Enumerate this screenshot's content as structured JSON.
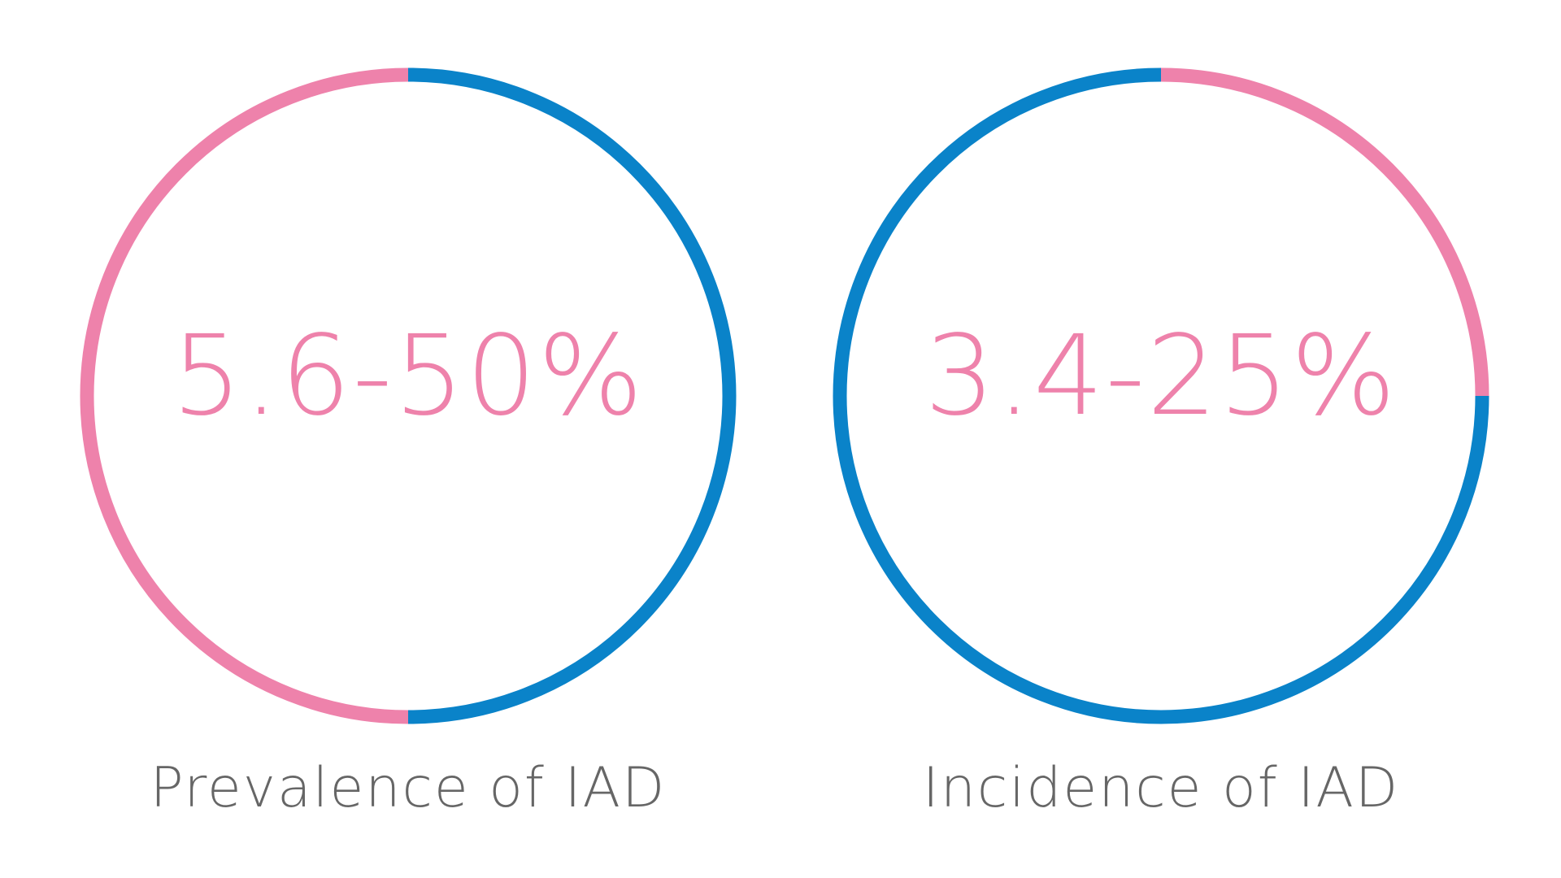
{
  "colors": {
    "blue": "#0a83c9",
    "pink": "#ee82ab",
    "caption": "#666666"
  },
  "chart_data": [
    {
      "type": "pie",
      "style": "ring",
      "value_text": "5.6-50%",
      "label": "Prevalence of IAD",
      "slices": [
        {
          "color": "blue",
          "value": 50
        },
        {
          "color": "pink",
          "value": 50
        }
      ]
    },
    {
      "type": "pie",
      "style": "ring",
      "value_text": "3.4-25%",
      "label": "Incidence of IAD",
      "slices": [
        {
          "color": "pink",
          "value": 25
        },
        {
          "color": "blue",
          "value": 75
        }
      ]
    }
  ]
}
